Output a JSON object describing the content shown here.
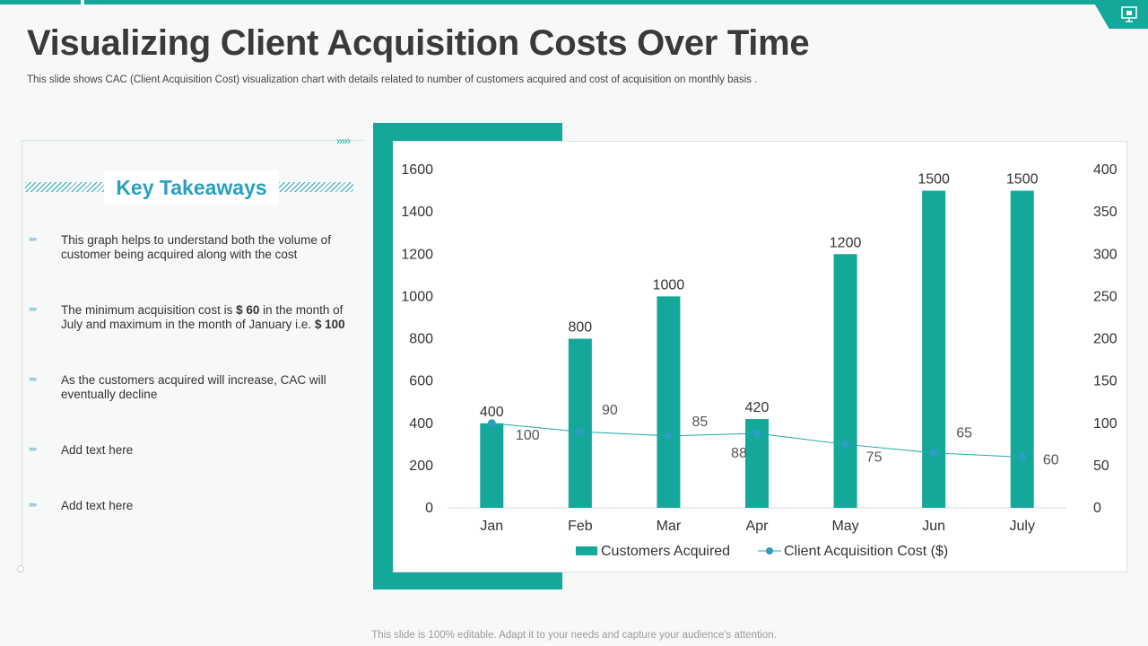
{
  "title": "Visualizing Client Acquisition Costs Over Time",
  "subtitle": "This slide shows CAC (Client Acquisition Cost) visualization chart with details related to number of customers acquired and cost of acquisition on monthly basis .",
  "key_takeaways": {
    "heading": "Key Takeaways",
    "items": [
      {
        "text": "This graph helps to understand both the volume of customer being acquired along with the cost"
      },
      {
        "pre": "The minimum  acquisition cost is ",
        "b1": "$ 60",
        "mid": " in the month of July and maximum  in the month of January i.e. ",
        "b2": "$ 100"
      },
      {
        "text": "As the customers acquired will increase, CAC will eventually decline"
      },
      {
        "text": "Add text here"
      },
      {
        "text": "Add text here"
      }
    ]
  },
  "footer": "This slide is 100% editable. Adapt it to your needs and capture your audience's attention.",
  "colors": {
    "accent": "#14a89a",
    "heading": "#2a9fc0"
  },
  "chart_data": {
    "type": "bar",
    "categories": [
      "Jan",
      "Feb",
      "Mar",
      "Apr",
      "May",
      "Jun",
      "July"
    ],
    "series": [
      {
        "name": "Customers Acquired",
        "type": "bar",
        "axis": "left",
        "values": [
          400,
          800,
          1000,
          420,
          1200,
          1500,
          1500
        ]
      },
      {
        "name": "Client Acquisition Cost ($)",
        "type": "line",
        "axis": "right",
        "values": [
          100,
          90,
          85,
          88,
          75,
          65,
          60
        ]
      }
    ],
    "y_left": {
      "min": 0,
      "max": 1600,
      "ticks": [
        0,
        200,
        400,
        600,
        800,
        1000,
        1200,
        1400,
        1600
      ]
    },
    "y_right": {
      "min": 0,
      "max": 400,
      "ticks": [
        0,
        50,
        100,
        150,
        200,
        250,
        300,
        350,
        400
      ]
    },
    "legend": "bottom",
    "grid": false
  }
}
